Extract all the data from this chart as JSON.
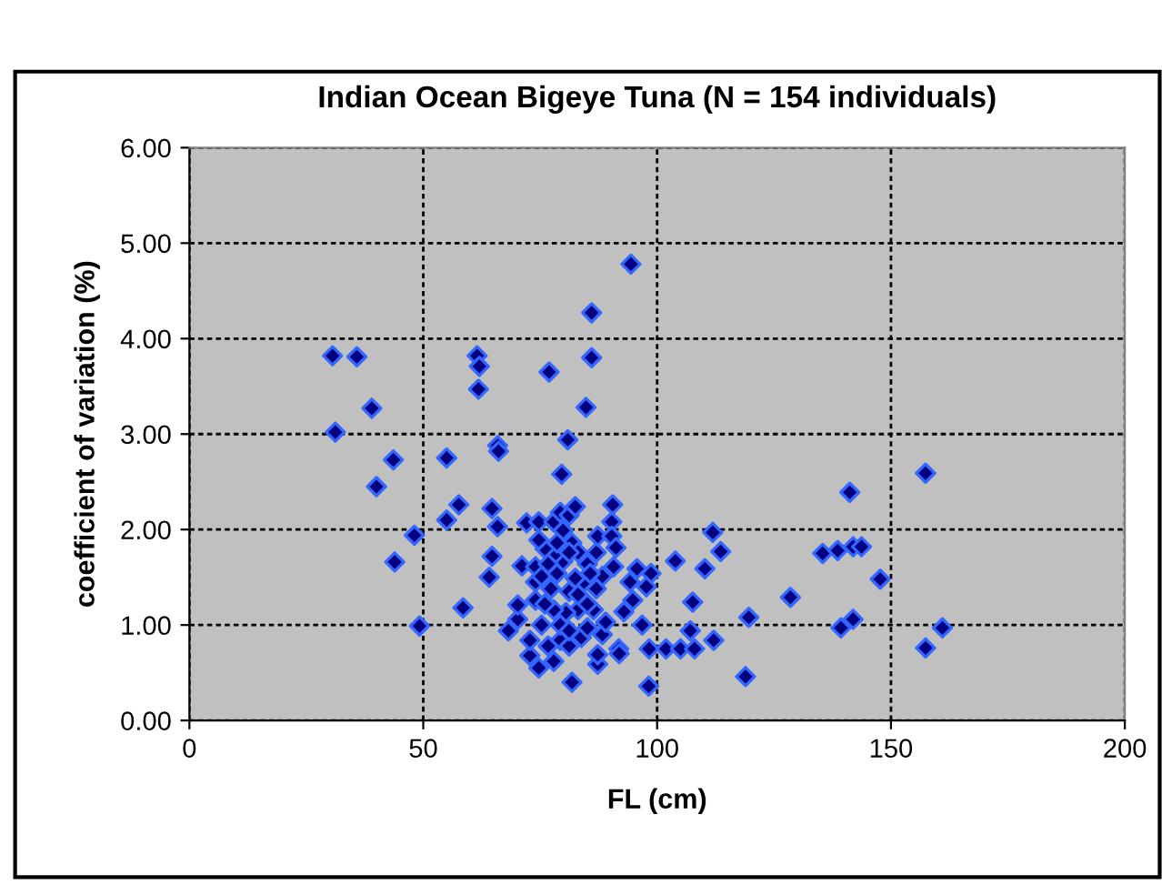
{
  "chart_data": {
    "type": "scatter",
    "title": "Indian Ocean Bigeye Tuna (N = 154 individuals)",
    "xlabel": "FL (cm)",
    "ylabel": "coefficient of variation (%)",
    "marker": "diamond",
    "grid": true,
    "xlim": [
      0,
      200
    ],
    "xticks": [
      0,
      50,
      100,
      150,
      200
    ],
    "ylim": [
      0,
      6
    ],
    "yticks": [
      {
        "value": 0,
        "label": "0.00"
      },
      {
        "value": 1,
        "label": "1.00"
      },
      {
        "value": 2,
        "label": "2.00"
      },
      {
        "value": 3,
        "label": "3.00"
      },
      {
        "value": 4,
        "label": "4.00"
      },
      {
        "value": 5,
        "label": "5.00"
      },
      {
        "value": 6,
        "label": "6.00"
      }
    ],
    "series": [
      {
        "color": "#000080",
        "x": [
          30.6,
          35.8,
          39.0,
          31.2,
          43.6,
          40.0,
          48.1,
          43.9,
          49.2,
          55.0,
          57.6,
          55.0,
          64.7,
          65.9,
          64.7,
          64.1,
          58.5,
          61.5,
          62.0,
          61.8,
          65.9,
          66.1,
          68.2,
          94.4,
          86.0,
          86.0,
          76.9,
          84.8,
          80.9,
          79.6,
          72.1,
          71.1,
          111.9,
          113.6,
          103.9,
          110.2,
          107.6,
          119.6,
          107.1,
          112.1,
          98.3,
          101.9,
          105.0,
          108.0,
          118.9,
          98.2,
          81.8,
          90.5,
          90.3,
          95.7,
          98.7,
          97.7,
          94.8,
          92.9,
          96.8,
          91.8,
          87.3,
          87.3,
          91.9,
          83.8,
          77.9,
          74.7,
          72.8,
          72.8,
          70.2,
          70.2,
          74.0,
          75.3,
          79.3,
          81.2,
          85.1,
          88.3,
          89.0,
          86.4,
          83.1,
          80.5,
          77.9,
          76.0,
          74.0,
          74.0,
          75.3,
          77.3,
          78.6,
          79.9,
          77.9,
          76.0,
          74.7,
          74.7,
          77.9,
          79.3,
          81.2,
          82.5,
          79.9,
          81.8,
          83.1,
          85.1,
          87.0,
          87.3,
          90.3,
          91.2,
          90.7,
          88.3,
          87.0,
          84.4,
          82.5,
          81.2,
          83.1,
          85.1,
          94.2,
          79.3,
          81.2,
          76.7,
          85.7,
          76.7,
          81.2,
          78.6,
          157.4,
          141.2,
          135.4,
          138.6,
          141.9,
          143.7,
          147.7,
          128.5,
          141.9,
          139.3,
          161.0,
          157.4
        ],
        "values": [
          3.82,
          3.81,
          3.27,
          3.02,
          2.73,
          2.45,
          1.94,
          1.66,
          0.99,
          2.75,
          2.26,
          2.1,
          2.22,
          2.03,
          1.72,
          1.5,
          1.18,
          3.82,
          3.71,
          3.47,
          2.88,
          2.82,
          0.94,
          4.78,
          4.27,
          3.8,
          3.65,
          3.28,
          2.94,
          2.58,
          2.07,
          1.62,
          1.97,
          1.77,
          1.67,
          1.59,
          1.24,
          1.08,
          0.94,
          0.84,
          0.75,
          0.75,
          0.75,
          0.75,
          0.46,
          0.36,
          0.4,
          2.26,
          2.08,
          1.59,
          1.54,
          1.4,
          1.26,
          1.14,
          1.0,
          0.75,
          0.59,
          0.69,
          0.7,
          0.87,
          0.62,
          0.55,
          0.68,
          0.84,
          1.06,
          1.21,
          1.26,
          1.0,
          0.84,
          0.78,
          0.97,
          0.9,
          1.03,
          1.16,
          1.16,
          1.13,
          1.16,
          1.22,
          1.45,
          1.61,
          1.51,
          1.38,
          1.54,
          1.67,
          1.73,
          1.8,
          1.89,
          2.08,
          2.08,
          2.18,
          2.15,
          2.24,
          1.99,
          1.86,
          1.76,
          1.64,
          1.76,
          1.93,
          1.93,
          1.81,
          1.61,
          1.51,
          1.38,
          1.45,
          1.49,
          1.35,
          1.32,
          1.22,
          1.45,
          1.0,
          0.94,
          0.78,
          1.54,
          1.64,
          1.76,
          1.86,
          2.59,
          2.39,
          1.75,
          1.78,
          1.82,
          1.82,
          1.48,
          1.29,
          1.06,
          0.97,
          0.97,
          0.76
        ]
      }
    ]
  }
}
